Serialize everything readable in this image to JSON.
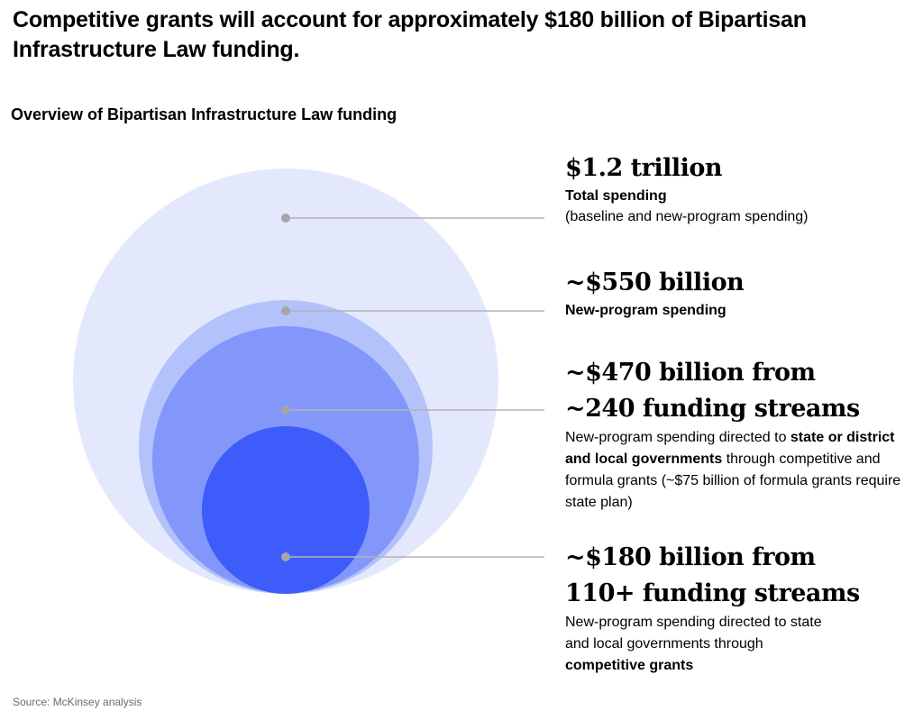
{
  "headline": "Competitive grants will account for approximately $180 billion of Bipartisan Infrastructure Law funding.",
  "subtitle": "Overview of Bipartisan Infrastructure Law funding",
  "source": "Source: McKinsey analysis",
  "colors": {
    "total": "#e4e8fd",
    "new_program": "#b4c2fb",
    "formula_and_competitive": "#8397fb",
    "competitive": "#3d5cf9",
    "leader_line": "#b3b3b3",
    "leader_dot": "#a6a6a6"
  },
  "labels": {
    "total": {
      "value": "$1.2 trillion",
      "title": "Total spending",
      "note": "(baseline and new-program spending)"
    },
    "new_program": {
      "value": "~$550 billion",
      "title": "New-program spending"
    },
    "state_local": {
      "value_line1": "~$470 billion from",
      "value_line2": "~240 funding streams",
      "desc_1": "New-program spending directed to ",
      "desc_bold_1": "state or district and local governments",
      "desc_2": " through competitive and formula grants (~$75 billion of formula grants require state plan)"
    },
    "competitive": {
      "value_line1": "~$180 billion from",
      "value_line2": "110+ funding streams",
      "desc_1": "New-program spending directed to state and local governments through ",
      "desc_bold_1": "competitive grants"
    }
  },
  "chart_data": {
    "type": "nested-bubble",
    "title": "Overview of Bipartisan Infrastructure Law funding",
    "units": "billion $",
    "bubbles": [
      {
        "key": "total",
        "name": "Total spending",
        "value": 1200,
        "approx": false
      },
      {
        "key": "new_program",
        "name": "New-program spending",
        "value": 550,
        "approx": true
      },
      {
        "key": "formula_and_competitive",
        "name": "State/local (competitive and formula grants)",
        "value": 470,
        "approx": true,
        "funding_streams": "~240"
      },
      {
        "key": "competitive",
        "name": "Competitive grants",
        "value": 180,
        "approx": true,
        "funding_streams": "110+"
      }
    ]
  }
}
